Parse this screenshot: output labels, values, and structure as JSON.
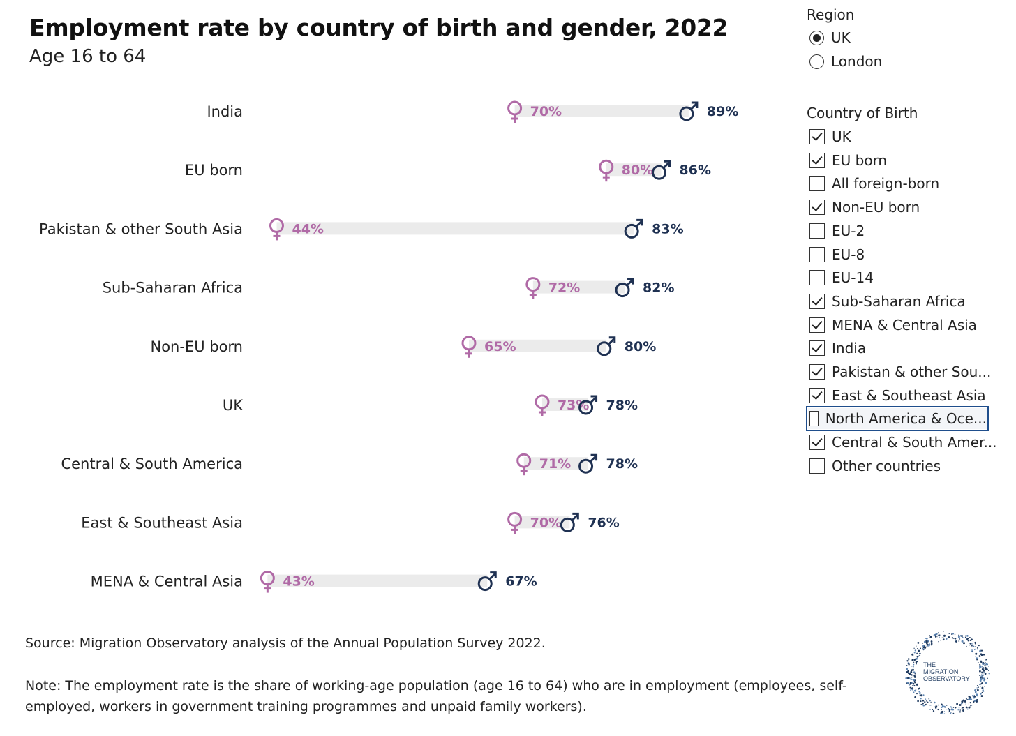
{
  "header": {
    "title": "Employment rate by country of birth and gender, 2022",
    "subtitle": "Age 16 to 64"
  },
  "chart_data": {
    "type": "dumbbell",
    "title": "Employment rate by country of birth and gender, 2022",
    "subtitle": "Age 16 to 64",
    "categories": [
      "India",
      "EU born",
      "Pakistan & other South Asia",
      "Sub-Saharan Africa",
      "Non-EU born",
      "UK",
      "Central & South America",
      "East & Southeast Asia",
      "MENA & Central Asia"
    ],
    "series": [
      {
        "name": "♀",
        "values": [
          70,
          80,
          44,
          72,
          65,
          73,
          71,
          70,
          43
        ],
        "color": "#b06aa6"
      },
      {
        "name": "♂",
        "values": [
          89,
          86,
          83,
          82,
          80,
          78,
          78,
          76,
          67
        ],
        "color": "#1f3152"
      }
    ],
    "xlim": [
      40,
      90
    ],
    "grid": false,
    "legend": "none"
  },
  "filters": {
    "region": {
      "title": "Region",
      "options": [
        {
          "label": "UK",
          "selected": true
        },
        {
          "label": "London",
          "selected": false
        }
      ]
    },
    "country_of_birth": {
      "title": "Country of Birth",
      "options": [
        {
          "label": "UK",
          "checked": true
        },
        {
          "label": "EU born",
          "checked": true
        },
        {
          "label": "All foreign-born",
          "checked": false
        },
        {
          "label": "Non-EU born",
          "checked": true
        },
        {
          "label": "EU-2",
          "checked": false
        },
        {
          "label": "EU-8",
          "checked": false
        },
        {
          "label": "EU-14",
          "checked": false
        },
        {
          "label": "Sub-Saharan Africa",
          "checked": true
        },
        {
          "label": "MENA & Central Asia",
          "checked": true
        },
        {
          "label": "India",
          "checked": true
        },
        {
          "label": "Pakistan & other Sou...",
          "checked": true
        },
        {
          "label": "East & Southeast Asia",
          "checked": true
        },
        {
          "label": "North America & Oce...",
          "checked": false,
          "focused": true
        },
        {
          "label": "Central & South Amer...",
          "checked": true
        },
        {
          "label": "Other countries",
          "checked": false
        }
      ]
    }
  },
  "footer": {
    "source": "Source: Migration Observatory analysis of the Annual Population Survey 2022.",
    "note": "Note: The employment rate is the share of working-age population (age 16 to 64) who are in employment (employees, self-employed, workers in government training programmes and unpaid family workers)."
  },
  "logo": {
    "line1": "THE",
    "line2": "MIGRATION",
    "line3": "OBSERVATORY",
    "color": "#1f3a5f"
  }
}
